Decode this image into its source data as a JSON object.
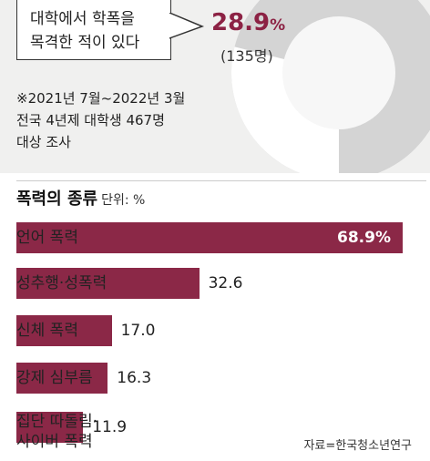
{
  "callout": {
    "text": "대학에서 학폭을\n목격한 적이 있다",
    "percent": "28.9",
    "percent_sign": "%",
    "count": "(135명)"
  },
  "survey_note": "※2021년 7월~2022년 3월\n전국 4년제 대학생 467명\n대상 조사",
  "section": {
    "title": "폭력의 종류",
    "unit": "단위: %"
  },
  "source": "자료=한국청소년연구",
  "colors": {
    "bar": "#8b2847",
    "accent": "#8c2244",
    "donut_track": "#d4d4d4",
    "donut_hole": "#f7f7f7"
  },
  "donut_share": 0.289,
  "chart_data": {
    "type": "bar",
    "orientation": "horizontal",
    "title": "폭력의 종류",
    "unit": "%",
    "categories": [
      "언어 폭력",
      "성추행·성폭력",
      "신체 폭력",
      "강제 심부름",
      "집단 따돌림·\n사이버 폭력"
    ],
    "values": [
      68.9,
      32.6,
      17.0,
      16.3,
      11.9
    ],
    "value_labels": [
      "68.9%",
      "32.6",
      "17.0",
      "16.3",
      "11.9"
    ],
    "xlim": [
      0,
      68.9
    ],
    "grid": false,
    "legend": "none"
  }
}
